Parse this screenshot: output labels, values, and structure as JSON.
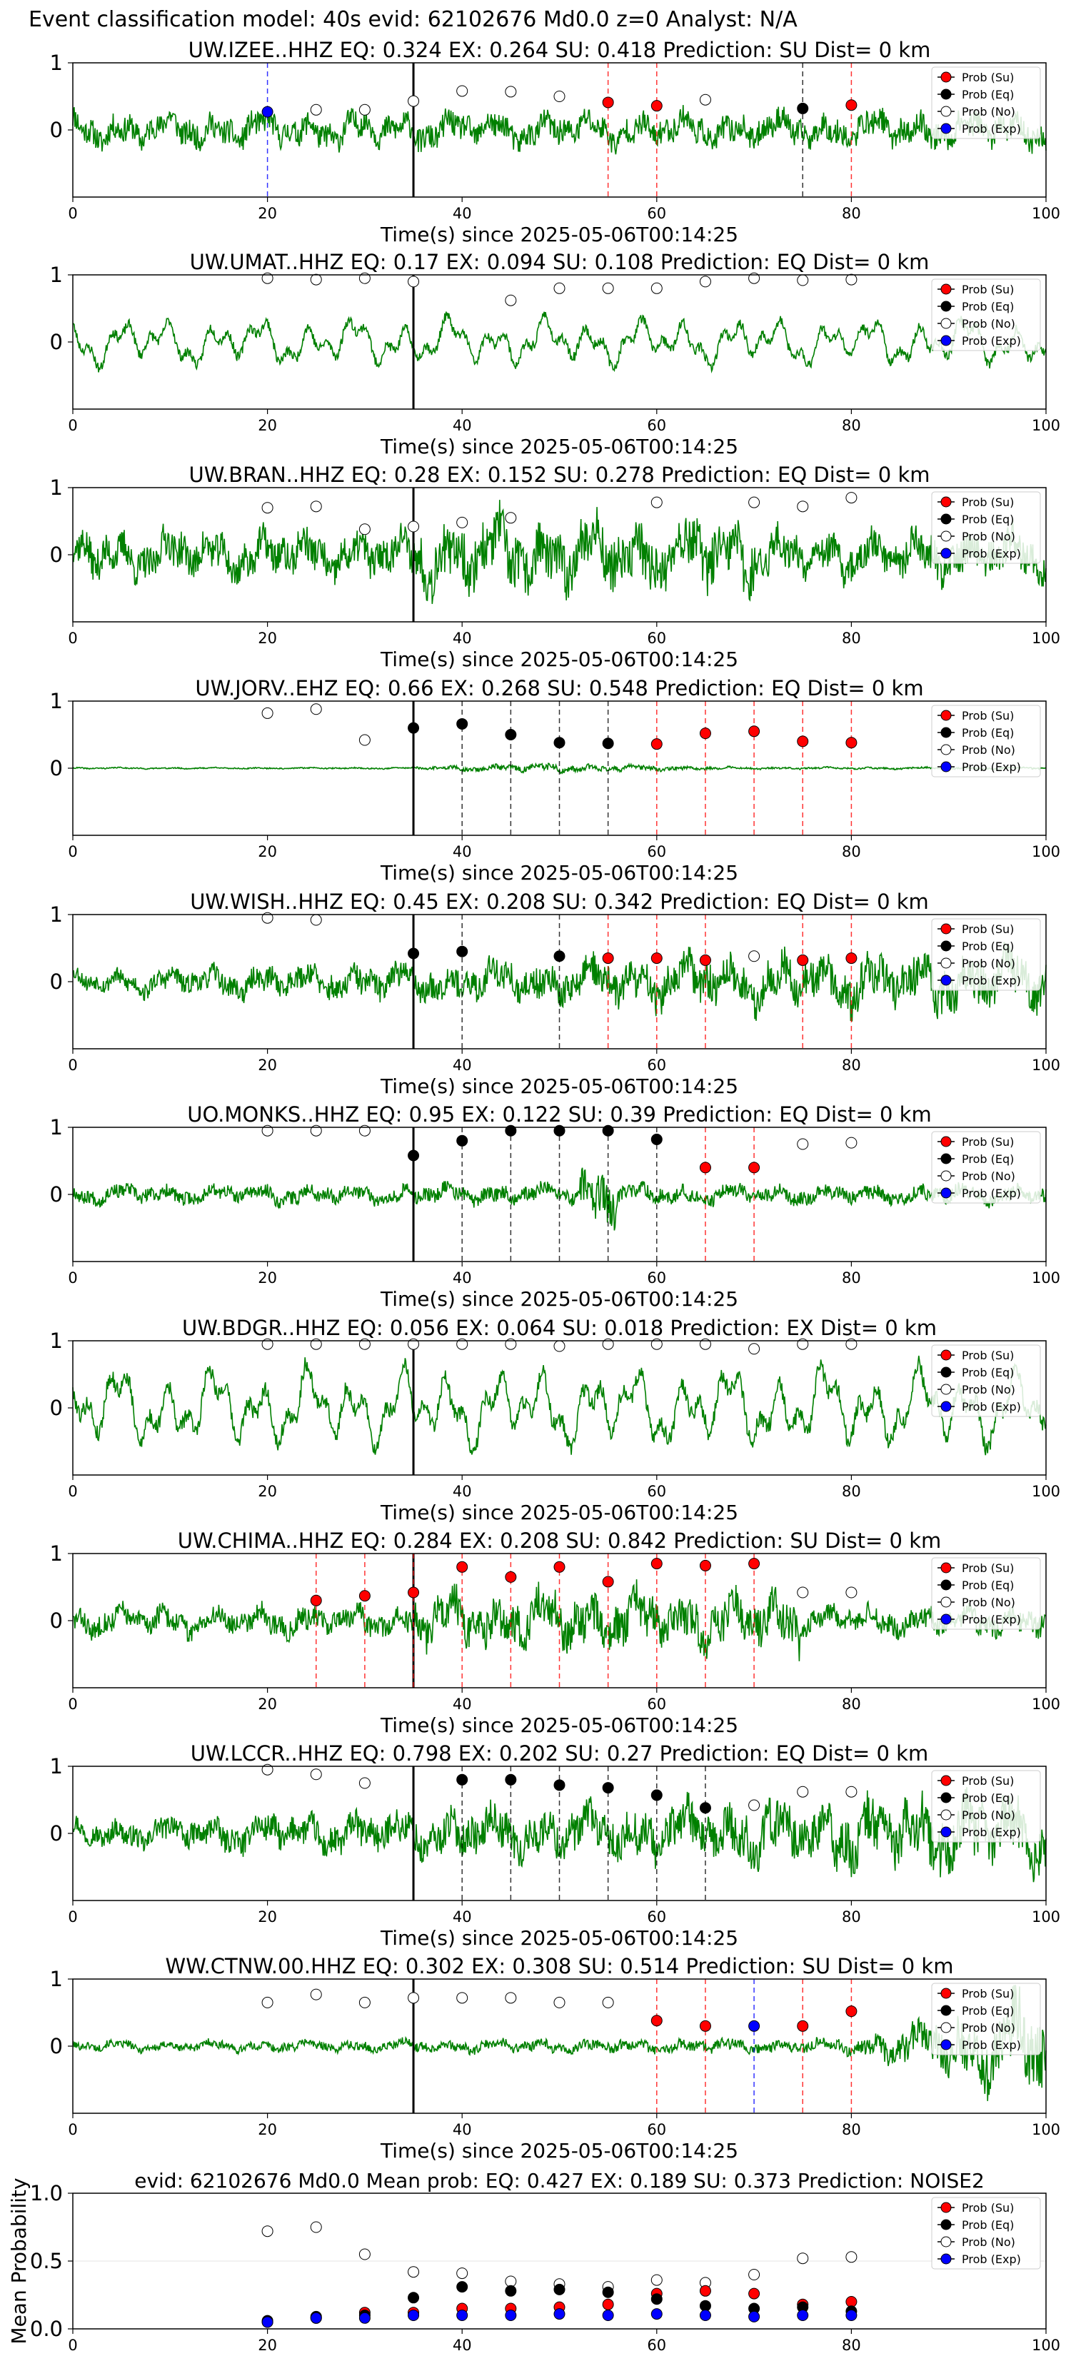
{
  "figure": {
    "suptitle": "Event classification model: 40s evid: 62102676 Md0.0 z=0 Analyst: N/A",
    "xlabel": "Time(s) since 2025-05-06T00:14:25",
    "legend": [
      "Prob (Su)",
      "Prob (Eq)",
      "Prob (No)",
      "Prob (Exp)"
    ],
    "colors": {
      "waveform": "#008000",
      "su": "#ff0000",
      "eq": "#000000",
      "no": "#ffffff",
      "exp": "#0000ff",
      "pick": "#000000"
    }
  },
  "chart_data": [
    {
      "type": "scatter",
      "title": "UW.IZEE..HHZ   EQ: 0.324  EX: 0.264  SU: 0.418   Prediction: SU    Dist= 0 km",
      "xlim": [
        0,
        100
      ],
      "ylim": [
        -1,
        1
      ],
      "xticks": [
        0,
        20,
        40,
        60,
        80,
        100
      ],
      "yticks": [
        0,
        1
      ],
      "pick_time": 35,
      "waveform": {
        "amp": 0.33,
        "style": "noisy",
        "seed": 11
      },
      "windows": [
        {
          "x": 20,
          "label": "exp",
          "prob": 0.27
        },
        {
          "x": 25,
          "label": "no",
          "prob": 0.3
        },
        {
          "x": 30,
          "label": "no",
          "prob": 0.3
        },
        {
          "x": 35,
          "label": "no",
          "prob": 0.43
        },
        {
          "x": 40,
          "label": "no",
          "prob": 0.58
        },
        {
          "x": 45,
          "label": "no",
          "prob": 0.57
        },
        {
          "x": 50,
          "label": "no",
          "prob": 0.5
        },
        {
          "x": 55,
          "label": "su",
          "prob": 0.41
        },
        {
          "x": 60,
          "label": "su",
          "prob": 0.36
        },
        {
          "x": 65,
          "label": "no",
          "prob": 0.45
        },
        {
          "x": 75,
          "label": "eq",
          "prob": 0.32
        },
        {
          "x": 80,
          "label": "su",
          "prob": 0.37
        }
      ]
    },
    {
      "type": "scatter",
      "title": "UW.UMAT..HHZ   EQ: 0.17  EX: 0.094  SU: 0.108   Prediction: EQ    Dist= 0 km",
      "xlim": [
        0,
        100
      ],
      "ylim": [
        -1,
        1
      ],
      "xticks": [
        0,
        20,
        40,
        60,
        80,
        100
      ],
      "yticks": [
        0,
        1
      ],
      "pick_time": 35,
      "waveform": {
        "amp": 0.3,
        "style": "smooth",
        "seed": 23
      },
      "windows": [
        {
          "x": 20,
          "label": "no",
          "prob": 0.95
        },
        {
          "x": 25,
          "label": "no",
          "prob": 0.93
        },
        {
          "x": 30,
          "label": "no",
          "prob": 0.95
        },
        {
          "x": 35,
          "label": "no",
          "prob": 0.9
        },
        {
          "x": 45,
          "label": "no",
          "prob": 0.62
        },
        {
          "x": 50,
          "label": "no",
          "prob": 0.8
        },
        {
          "x": 55,
          "label": "no",
          "prob": 0.8
        },
        {
          "x": 60,
          "label": "no",
          "prob": 0.8
        },
        {
          "x": 65,
          "label": "no",
          "prob": 0.9
        },
        {
          "x": 70,
          "label": "no",
          "prob": 0.95
        },
        {
          "x": 75,
          "label": "no",
          "prob": 0.92
        },
        {
          "x": 80,
          "label": "no",
          "prob": 0.93
        }
      ]
    },
    {
      "type": "scatter",
      "title": "UW.BRAN..HHZ   EQ: 0.28  EX: 0.152  SU: 0.278   Prediction: EQ    Dist= 0 km",
      "xlim": [
        0,
        100
      ],
      "ylim": [
        -1,
        1
      ],
      "xticks": [
        0,
        20,
        40,
        60,
        80,
        100
      ],
      "yticks": [
        0,
        1
      ],
      "pick_time": 35,
      "waveform": {
        "amp": 0.45,
        "style": "burst",
        "seed": 37
      },
      "windows": [
        {
          "x": 20,
          "label": "no",
          "prob": 0.7
        },
        {
          "x": 25,
          "label": "no",
          "prob": 0.72
        },
        {
          "x": 30,
          "label": "no",
          "prob": 0.38
        },
        {
          "x": 35,
          "label": "no",
          "prob": 0.42
        },
        {
          "x": 40,
          "label": "no",
          "prob": 0.48
        },
        {
          "x": 45,
          "label": "no",
          "prob": 0.55
        },
        {
          "x": 60,
          "label": "no",
          "prob": 0.78
        },
        {
          "x": 70,
          "label": "no",
          "prob": 0.78
        },
        {
          "x": 75,
          "label": "no",
          "prob": 0.72
        },
        {
          "x": 80,
          "label": "no",
          "prob": 0.85
        }
      ]
    },
    {
      "type": "scatter",
      "title": "UW.JORV..EHZ   EQ: 0.66  EX: 0.268  SU: 0.548   Prediction: EQ    Dist= 0 km",
      "xlim": [
        0,
        100
      ],
      "ylim": [
        -1,
        1
      ],
      "xticks": [
        0,
        20,
        40,
        60,
        80,
        100
      ],
      "yticks": [
        0,
        1
      ],
      "pick_time": 35,
      "waveform": {
        "amp": 0.06,
        "style": "quake",
        "seed": 41
      },
      "windows": [
        {
          "x": 20,
          "label": "no",
          "prob": 0.82
        },
        {
          "x": 25,
          "label": "no",
          "prob": 0.88
        },
        {
          "x": 30,
          "label": "no",
          "prob": 0.42
        },
        {
          "x": 35,
          "label": "eq",
          "prob": 0.6
        },
        {
          "x": 40,
          "label": "eq",
          "prob": 0.66
        },
        {
          "x": 45,
          "label": "eq",
          "prob": 0.5
        },
        {
          "x": 50,
          "label": "eq",
          "prob": 0.38
        },
        {
          "x": 55,
          "label": "eq",
          "prob": 0.37
        },
        {
          "x": 60,
          "label": "su",
          "prob": 0.36
        },
        {
          "x": 65,
          "label": "su",
          "prob": 0.52
        },
        {
          "x": 70,
          "label": "su",
          "prob": 0.55
        },
        {
          "x": 75,
          "label": "su",
          "prob": 0.4
        },
        {
          "x": 80,
          "label": "su",
          "prob": 0.38
        }
      ]
    },
    {
      "type": "scatter",
      "title": "UW.WISH..HHZ   EQ: 0.45  EX: 0.208  SU: 0.342   Prediction: EQ    Dist= 0 km",
      "xlim": [
        0,
        100
      ],
      "ylim": [
        -1,
        1
      ],
      "xticks": [
        0,
        20,
        40,
        60,
        80,
        100
      ],
      "yticks": [
        0,
        1
      ],
      "pick_time": 35,
      "waveform": {
        "amp": 0.3,
        "style": "growing",
        "seed": 53
      },
      "windows": [
        {
          "x": 20,
          "label": "no",
          "prob": 0.95
        },
        {
          "x": 25,
          "label": "no",
          "prob": 0.92
        },
        {
          "x": 35,
          "label": "eq",
          "prob": 0.42
        },
        {
          "x": 40,
          "label": "eq",
          "prob": 0.45
        },
        {
          "x": 50,
          "label": "eq",
          "prob": 0.38
        },
        {
          "x": 55,
          "label": "su",
          "prob": 0.35
        },
        {
          "x": 60,
          "label": "su",
          "prob": 0.35
        },
        {
          "x": 65,
          "label": "su",
          "prob": 0.32
        },
        {
          "x": 70,
          "label": "no",
          "prob": 0.38
        },
        {
          "x": 75,
          "label": "su",
          "prob": 0.32
        },
        {
          "x": 80,
          "label": "su",
          "prob": 0.35
        }
      ]
    },
    {
      "type": "scatter",
      "title": "UO.MONKS..HHZ   EQ: 0.95  EX: 0.122  SU: 0.39   Prediction: EQ    Dist= 0 km",
      "xlim": [
        0,
        100
      ],
      "ylim": [
        -1,
        1
      ],
      "xticks": [
        0,
        20,
        40,
        60,
        80,
        100
      ],
      "yticks": [
        0,
        1
      ],
      "pick_time": 35,
      "waveform": {
        "amp": 0.18,
        "style": "spike",
        "seed": 67
      },
      "windows": [
        {
          "x": 20,
          "label": "no",
          "prob": 0.95
        },
        {
          "x": 25,
          "label": "no",
          "prob": 0.95
        },
        {
          "x": 30,
          "label": "no",
          "prob": 0.95
        },
        {
          "x": 35,
          "label": "eq",
          "prob": 0.58
        },
        {
          "x": 40,
          "label": "eq",
          "prob": 0.8
        },
        {
          "x": 45,
          "label": "eq",
          "prob": 0.95
        },
        {
          "x": 50,
          "label": "eq",
          "prob": 0.95
        },
        {
          "x": 55,
          "label": "eq",
          "prob": 0.95
        },
        {
          "x": 60,
          "label": "eq",
          "prob": 0.82
        },
        {
          "x": 65,
          "label": "su",
          "prob": 0.4
        },
        {
          "x": 70,
          "label": "su",
          "prob": 0.4
        },
        {
          "x": 75,
          "label": "no",
          "prob": 0.75
        },
        {
          "x": 80,
          "label": "no",
          "prob": 0.77
        }
      ]
    },
    {
      "type": "scatter",
      "title": "UW.BDGR..HHZ   EQ: 0.056  EX: 0.064  SU: 0.018   Prediction: EX    Dist= 0 km",
      "xlim": [
        0,
        100
      ],
      "ylim": [
        -1,
        1
      ],
      "xticks": [
        0,
        20,
        40,
        60,
        80,
        100
      ],
      "yticks": [
        0,
        1
      ],
      "pick_time": 35,
      "waveform": {
        "amp": 0.5,
        "style": "smooth",
        "seed": 79
      },
      "windows": [
        {
          "x": 20,
          "label": "no",
          "prob": 0.95
        },
        {
          "x": 25,
          "label": "no",
          "prob": 0.95
        },
        {
          "x": 30,
          "label": "no",
          "prob": 0.95
        },
        {
          "x": 35,
          "label": "no",
          "prob": 0.95
        },
        {
          "x": 40,
          "label": "no",
          "prob": 0.95
        },
        {
          "x": 45,
          "label": "no",
          "prob": 0.95
        },
        {
          "x": 50,
          "label": "no",
          "prob": 0.92
        },
        {
          "x": 55,
          "label": "no",
          "prob": 0.95
        },
        {
          "x": 60,
          "label": "no",
          "prob": 0.95
        },
        {
          "x": 65,
          "label": "no",
          "prob": 0.95
        },
        {
          "x": 70,
          "label": "no",
          "prob": 0.88
        },
        {
          "x": 75,
          "label": "no",
          "prob": 0.95
        },
        {
          "x": 80,
          "label": "no",
          "prob": 0.95
        }
      ]
    },
    {
      "type": "scatter",
      "title": "UW.CHIMA..HHZ   EQ: 0.284  EX: 0.208  SU: 0.842   Prediction: SU    Dist= 0 km",
      "xlim": [
        0,
        100
      ],
      "ylim": [
        -1,
        1
      ],
      "xticks": [
        0,
        20,
        40,
        60,
        80,
        100
      ],
      "yticks": [
        0,
        1
      ],
      "pick_time": 35,
      "waveform": {
        "amp": 0.35,
        "style": "dense",
        "seed": 83
      },
      "windows": [
        {
          "x": 25,
          "label": "su",
          "prob": 0.3
        },
        {
          "x": 30,
          "label": "su",
          "prob": 0.37
        },
        {
          "x": 35,
          "label": "su",
          "prob": 0.42
        },
        {
          "x": 40,
          "label": "su",
          "prob": 0.8
        },
        {
          "x": 45,
          "label": "su",
          "prob": 0.65
        },
        {
          "x": 50,
          "label": "su",
          "prob": 0.8
        },
        {
          "x": 55,
          "label": "su",
          "prob": 0.58
        },
        {
          "x": 60,
          "label": "su",
          "prob": 0.85
        },
        {
          "x": 65,
          "label": "su",
          "prob": 0.82
        },
        {
          "x": 70,
          "label": "su",
          "prob": 0.85
        },
        {
          "x": 75,
          "label": "no",
          "prob": 0.42
        },
        {
          "x": 80,
          "label": "no",
          "prob": 0.42
        }
      ]
    },
    {
      "type": "scatter",
      "title": "UW.LCCR..HHZ   EQ: 0.798  EX: 0.202  SU: 0.27   Prediction: EQ    Dist= 0 km",
      "xlim": [
        0,
        100
      ],
      "ylim": [
        -1,
        1
      ],
      "xticks": [
        0,
        20,
        40,
        60,
        80,
        100
      ],
      "yticks": [
        0,
        1
      ],
      "pick_time": 35,
      "waveform": {
        "amp": 0.35,
        "style": "growing",
        "seed": 97
      },
      "windows": [
        {
          "x": 20,
          "label": "no",
          "prob": 0.95
        },
        {
          "x": 25,
          "label": "no",
          "prob": 0.88
        },
        {
          "x": 30,
          "label": "no",
          "prob": 0.75
        },
        {
          "x": 40,
          "label": "eq",
          "prob": 0.8
        },
        {
          "x": 45,
          "label": "eq",
          "prob": 0.8
        },
        {
          "x": 50,
          "label": "eq",
          "prob": 0.72
        },
        {
          "x": 55,
          "label": "eq",
          "prob": 0.68
        },
        {
          "x": 60,
          "label": "eq",
          "prob": 0.57
        },
        {
          "x": 65,
          "label": "eq",
          "prob": 0.38
        },
        {
          "x": 70,
          "label": "no",
          "prob": 0.42
        },
        {
          "x": 75,
          "label": "no",
          "prob": 0.62
        },
        {
          "x": 80,
          "label": "no",
          "prob": 0.62
        }
      ]
    },
    {
      "type": "scatter",
      "title": "WW.CTNW.00.HHZ   EQ: 0.302  EX: 0.308  SU: 0.514   Prediction: SU    Dist= 0 km",
      "xlim": [
        0,
        100
      ],
      "ylim": [
        -1,
        1
      ],
      "xticks": [
        0,
        20,
        40,
        60,
        80,
        100
      ],
      "yticks": [
        0,
        1
      ],
      "pick_time": 35,
      "waveform": {
        "amp": 0.12,
        "style": "late",
        "seed": 101
      },
      "windows": [
        {
          "x": 20,
          "label": "no",
          "prob": 0.65
        },
        {
          "x": 25,
          "label": "no",
          "prob": 0.77
        },
        {
          "x": 30,
          "label": "no",
          "prob": 0.65
        },
        {
          "x": 35,
          "label": "no",
          "prob": 0.72
        },
        {
          "x": 40,
          "label": "no",
          "prob": 0.72
        },
        {
          "x": 45,
          "label": "no",
          "prob": 0.72
        },
        {
          "x": 50,
          "label": "no",
          "prob": 0.65
        },
        {
          "x": 55,
          "label": "no",
          "prob": 0.65
        },
        {
          "x": 60,
          "label": "su",
          "prob": 0.38
        },
        {
          "x": 65,
          "label": "su",
          "prob": 0.3
        },
        {
          "x": 70,
          "label": "exp",
          "prob": 0.3
        },
        {
          "x": 75,
          "label": "su",
          "prob": 0.3
        },
        {
          "x": 80,
          "label": "su",
          "prob": 0.52
        }
      ]
    },
    {
      "type": "scatter",
      "title": "evid: 62102676  Md0.0   Mean prob:   EQ: 0.427  EX: 0.189  SU: 0.373   Prediction: NOISE2",
      "ylabel": "Mean Probability",
      "xlim": [
        0,
        100
      ],
      "ylim": [
        0,
        1
      ],
      "xticks": [
        0,
        20,
        40,
        60,
        80,
        100
      ],
      "yticks": [
        0.0,
        0.5,
        1.0
      ],
      "x": [
        20,
        25,
        30,
        35,
        40,
        45,
        50,
        55,
        60,
        65,
        70,
        75,
        80
      ],
      "series": [
        {
          "name": "Prob (No)",
          "values": [
            0.72,
            0.75,
            0.55,
            0.42,
            0.41,
            0.35,
            0.33,
            0.31,
            0.36,
            0.34,
            0.4,
            0.52,
            0.53
          ]
        },
        {
          "name": "Prob (Su)",
          "values": [
            0.05,
            0.08,
            0.12,
            0.12,
            0.15,
            0.15,
            0.16,
            0.18,
            0.26,
            0.28,
            0.26,
            0.18,
            0.2
          ]
        },
        {
          "name": "Prob (Eq)",
          "values": [
            0.06,
            0.09,
            0.1,
            0.23,
            0.31,
            0.28,
            0.29,
            0.27,
            0.22,
            0.17,
            0.15,
            0.16,
            0.13
          ]
        },
        {
          "name": "Prob (Exp)",
          "values": [
            0.05,
            0.08,
            0.08,
            0.1,
            0.1,
            0.1,
            0.11,
            0.1,
            0.11,
            0.1,
            0.09,
            0.1,
            0.1
          ]
        }
      ]
    }
  ]
}
